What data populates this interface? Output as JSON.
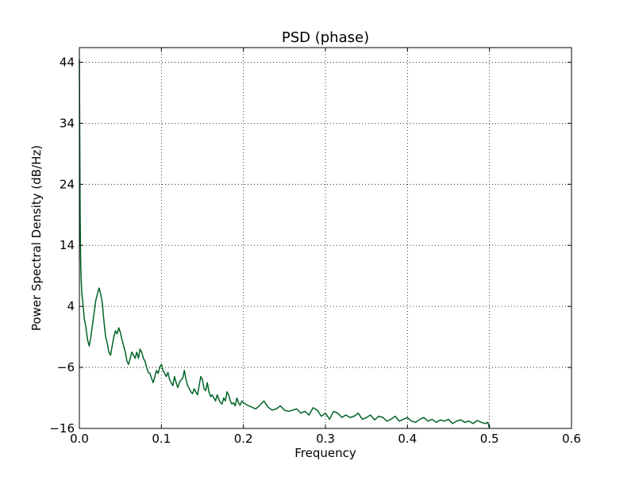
{
  "chart_data": {
    "type": "line",
    "title": "PSD (phase)",
    "xlabel": "Frequency",
    "ylabel": "Power Spectral Density (dB/Hz)",
    "xlim": [
      0.0,
      0.6
    ],
    "ylim": [
      -16,
      46.4
    ],
    "xticks": [
      0.0,
      0.1,
      0.2,
      0.3,
      0.4,
      0.5,
      0.6
    ],
    "xtick_labels": [
      "0.0",
      "0.1",
      "0.2",
      "0.3",
      "0.4",
      "0.5",
      "0.6"
    ],
    "yticks": [
      -16,
      -6,
      4,
      14,
      24,
      34,
      44
    ],
    "ytick_labels": [
      "−16",
      "−6",
      "4",
      "14",
      "24",
      "34",
      "44"
    ],
    "grid": true,
    "grid_style": "dotted",
    "line_color": "#006428",
    "series": [
      {
        "x": [
          0.0,
          0.0005,
          0.001,
          0.0015,
          0.002,
          0.003,
          0.004,
          0.005,
          0.006,
          0.008,
          0.01,
          0.012,
          0.014,
          0.016,
          0.018,
          0.02,
          0.022,
          0.024,
          0.025,
          0.026,
          0.028,
          0.03,
          0.032,
          0.034,
          0.036,
          0.038,
          0.04,
          0.042,
          0.044,
          0.046,
          0.048,
          0.05,
          0.052,
          0.054,
          0.056,
          0.058,
          0.06,
          0.062,
          0.064,
          0.066,
          0.068,
          0.07,
          0.072,
          0.074,
          0.076,
          0.078,
          0.08,
          0.082,
          0.084,
          0.086,
          0.088,
          0.09,
          0.092,
          0.094,
          0.096,
          0.098,
          0.1,
          0.102,
          0.104,
          0.106,
          0.108,
          0.11,
          0.112,
          0.114,
          0.116,
          0.118,
          0.12,
          0.122,
          0.124,
          0.126,
          0.128,
          0.13,
          0.132,
          0.134,
          0.136,
          0.138,
          0.14,
          0.142,
          0.144,
          0.146,
          0.148,
          0.15,
          0.152,
          0.154,
          0.156,
          0.158,
          0.16,
          0.162,
          0.164,
          0.166,
          0.168,
          0.17,
          0.172,
          0.174,
          0.176,
          0.178,
          0.18,
          0.182,
          0.184,
          0.186,
          0.188,
          0.19,
          0.192,
          0.194,
          0.196,
          0.198,
          0.2,
          0.205,
          0.21,
          0.215,
          0.22,
          0.225,
          0.23,
          0.235,
          0.24,
          0.245,
          0.25,
          0.255,
          0.26,
          0.265,
          0.27,
          0.275,
          0.28,
          0.285,
          0.29,
          0.295,
          0.3,
          0.305,
          0.31,
          0.315,
          0.32,
          0.325,
          0.33,
          0.335,
          0.34,
          0.345,
          0.35,
          0.355,
          0.36,
          0.365,
          0.37,
          0.375,
          0.38,
          0.385,
          0.39,
          0.395,
          0.4,
          0.405,
          0.41,
          0.415,
          0.42,
          0.425,
          0.43,
          0.435,
          0.44,
          0.445,
          0.45,
          0.455,
          0.46,
          0.465,
          0.47,
          0.475,
          0.48,
          0.485,
          0.49,
          0.495,
          0.498,
          0.5
        ],
        "y": [
          44.5,
          30,
          18,
          12,
          9,
          6,
          5,
          3.5,
          2,
          0.5,
          -1.5,
          -2.5,
          -1,
          1,
          3,
          5,
          6,
          7,
          6.5,
          6,
          4.5,
          1.5,
          -1,
          -2,
          -3.5,
          -4,
          -2.5,
          -1,
          0,
          -0.5,
          0.5,
          -0.3,
          -1.5,
          -2.5,
          -3.5,
          -5,
          -5.5,
          -4.5,
          -3.5,
          -4,
          -4.5,
          -3.5,
          -4.5,
          -3,
          -3.5,
          -4.5,
          -5,
          -6,
          -6.8,
          -7,
          -7.8,
          -8.5,
          -7.5,
          -6.5,
          -7,
          -6,
          -5.5,
          -6.5,
          -7,
          -7.5,
          -6.8,
          -8,
          -8.5,
          -9,
          -7.5,
          -8.5,
          -9.3,
          -8.5,
          -8,
          -7.8,
          -6.5,
          -8,
          -9,
          -9.5,
          -10,
          -10.3,
          -9.5,
          -10,
          -10.5,
          -9,
          -7.5,
          -8,
          -9.5,
          -9.8,
          -8.5,
          -10,
          -10.8,
          -10.5,
          -11,
          -11.5,
          -10.5,
          -11.2,
          -11.8,
          -12,
          -11,
          -11.5,
          -10,
          -10.5,
          -11.5,
          -12,
          -11.8,
          -12.3,
          -11,
          -11.8,
          -12.2,
          -11.5,
          -11.8,
          -12.2,
          -12.5,
          -12.8,
          -12.2,
          -11.5,
          -12.5,
          -13,
          -12.8,
          -12.3,
          -13,
          -13.2,
          -13,
          -12.8,
          -13.5,
          -13.2,
          -13.8,
          -12.6,
          -13,
          -14,
          -13.5,
          -14.5,
          -13.2,
          -13.5,
          -14.2,
          -13.8,
          -14.2,
          -14,
          -13.5,
          -14.5,
          -14.2,
          -13.8,
          -14.6,
          -14,
          -14.2,
          -14.8,
          -14.5,
          -14,
          -14.8,
          -14.5,
          -14.2,
          -14.8,
          -15,
          -14.5,
          -14.2,
          -14.8,
          -14.5,
          -15,
          -14.6,
          -14.8,
          -14.5,
          -15.2,
          -14.8,
          -14.6,
          -15,
          -14.8,
          -15.2,
          -14.7,
          -15,
          -15.2,
          -15,
          -16
        ]
      }
    ]
  }
}
